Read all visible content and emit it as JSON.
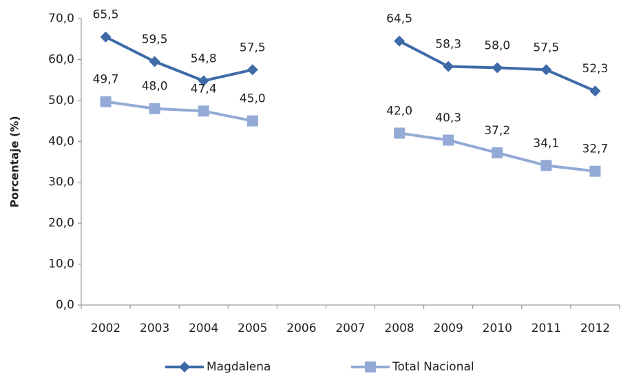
{
  "chart_data": {
    "type": "line",
    "y_label": "Porcentaje (%)",
    "categories": [
      "2002",
      "2003",
      "2004",
      "2005",
      "2006",
      "2007",
      "2008",
      "2009",
      "2010",
      "2011",
      "2012"
    ],
    "series": [
      {
        "name": "Magdalena",
        "color": "#3e6aa8",
        "marker": "diamond",
        "values": [
          65.5,
          59.5,
          54.8,
          57.5,
          null,
          null,
          64.5,
          58.3,
          58.0,
          57.5,
          52.3
        ],
        "value_labels": [
          "65,5",
          "59,5",
          "54,8",
          "57,5",
          null,
          null,
          "64,5",
          "58,3",
          "58,0",
          "57,5",
          "52,3"
        ]
      },
      {
        "name": "Total Nacional",
        "color": "#94aad6",
        "marker": "square",
        "values": [
          49.7,
          48.0,
          47.4,
          45.0,
          null,
          null,
          42.0,
          40.3,
          37.2,
          34.1,
          32.7
        ],
        "value_labels": [
          "49,7",
          "48,0",
          "47,4",
          "45,0",
          null,
          null,
          "42,0",
          "40,3",
          "37,2",
          "34,1",
          "32,7"
        ]
      }
    ],
    "ylim": [
      0,
      70
    ],
    "yticks": [
      {
        "value": 0,
        "label": "0,0"
      },
      {
        "value": 10,
        "label": "10,0"
      },
      {
        "value": 20,
        "label": "20,0"
      },
      {
        "value": 30,
        "label": "30,0"
      },
      {
        "value": 40,
        "label": "40,0"
      },
      {
        "value": 50,
        "label": "50,0"
      },
      {
        "value": 60,
        "label": "60,0"
      },
      {
        "value": 70,
        "label": "70,0"
      }
    ],
    "grid": false,
    "legend": "bottom"
  }
}
